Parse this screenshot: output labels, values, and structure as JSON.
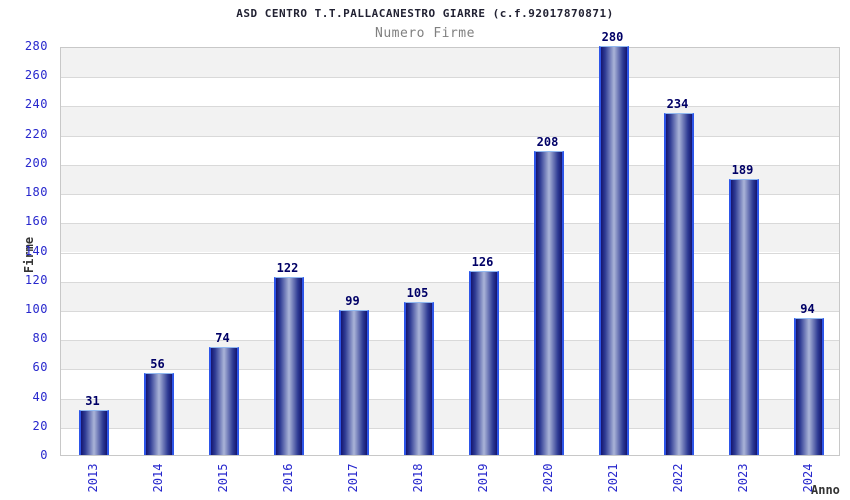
{
  "chart_data": {
    "type": "bar",
    "title": "ASD CENTRO T.T.PALLACANESTRO GIARRE (c.f.92017870871)",
    "subtitle": "Numero Firme",
    "xlabel": "Anno",
    "ylabel": "Firme",
    "categories": [
      "2013",
      "2014",
      "2015",
      "2016",
      "2017",
      "2018",
      "2019",
      "2020",
      "2021",
      "2022",
      "2023",
      "2024"
    ],
    "values": [
      31,
      56,
      74,
      122,
      99,
      105,
      126,
      208,
      280,
      234,
      189,
      94
    ],
    "ylim": [
      0,
      280
    ],
    "ytick_step": 20,
    "grid": "horizontal alternating bands",
    "legend": "none",
    "colors": {
      "background": "#ffffff",
      "title": "#222233",
      "subtitle": "#808080",
      "axis_label": "#333333",
      "tick_label": "#2727cd",
      "value_label": "#000066",
      "band": "#f2f2f2",
      "gridline": "#d9d9d9",
      "plot_border": "#c8c8c8",
      "bar_dark": "#15156e",
      "bar_mid": "#2e3b94",
      "bar_light": "#aab4d8",
      "bar_border": "#2d55e8",
      "bar_border_top": "#90b8f0"
    }
  }
}
